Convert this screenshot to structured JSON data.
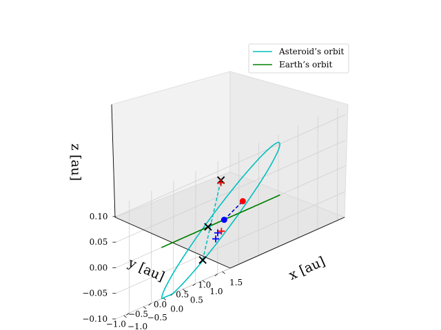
{
  "chart_data": {
    "type": "line",
    "projection": "3d",
    "title": "",
    "xlabel": "x [au]",
    "ylabel": "y [au]",
    "zlabel": "z [au]",
    "xlim": [
      -1.2,
      1.7
    ],
    "ylim": [
      -1.3,
      1.3
    ],
    "zlim": [
      -0.1,
      0.12
    ],
    "x_ticks": [
      -1.0,
      -0.5,
      0.0,
      0.5,
      1.0,
      1.5
    ],
    "x_tick_labels": [
      "−1.0",
      "−0.5",
      "0.0",
      "0.5",
      "1.0",
      "1.5"
    ],
    "y_ticks": [
      1.0,
      0.5,
      0.0,
      -0.5,
      -1.0
    ],
    "y_tick_labels": [
      "1.0",
      "0.5",
      "0.0",
      "−0.5",
      "−1.0"
    ],
    "z_ticks": [
      0.1,
      0.05,
      0.0,
      -0.05,
      -0.1
    ],
    "z_tick_labels": [
      "0.10",
      "0.05",
      "0.00",
      "−0.05",
      "−0.10"
    ],
    "grid": true,
    "legend_position": "top-right",
    "series": [
      {
        "name": "Asteroid’s orbit",
        "color": "#00bfbf",
        "orbit": {
          "a": 1.0,
          "e": 0.0,
          "inclination_deg": 6,
          "node_deg": 300
        }
      },
      {
        "name": "Earth’s orbit",
        "color": "#008000",
        "orbit": {
          "a": 1.0,
          "e": 0.0,
          "inclination_deg": 0,
          "node_deg": 0
        }
      }
    ],
    "markers": [
      {
        "kind": "dot",
        "color": "#0000ff",
        "x": -0.7,
        "y": 0.7,
        "z": 0.0
      },
      {
        "kind": "dot",
        "color": "#ff0000",
        "x": 0.95,
        "y": -0.35,
        "z": 0.02
      },
      {
        "kind": "cross",
        "color": "#000000",
        "x": 0.35,
        "y": -0.6,
        "z": 0.0
      },
      {
        "kind": "cross",
        "color": "#000000",
        "x": 0.9,
        "y": -0.8,
        "z": 0.08
      },
      {
        "kind": "cross",
        "color": "#000000",
        "x": -0.85,
        "y": 0.35,
        "z": -0.06
      },
      {
        "kind": "plus",
        "color": "#0000ff",
        "x": -0.75,
        "y": 0.6,
        "z": -0.02
      },
      {
        "kind": "plus",
        "color": "#0000ff",
        "x": -0.8,
        "y": 0.6,
        "z": -0.03
      },
      {
        "kind": "plus",
        "color": "#ff0000",
        "x": -0.6,
        "y": 0.55,
        "z": -0.02
      },
      {
        "kind": "plus",
        "color": "#ff0000",
        "x": 0.9,
        "y": -0.8,
        "z": 0.075
      }
    ],
    "lines": [
      {
        "style": "dashed",
        "color": "#0000cc",
        "from": {
          "x": -0.7,
          "y": 0.7,
          "z": 0.0
        },
        "to": {
          "x": 0.95,
          "y": -0.35,
          "z": 0.02
        }
      },
      {
        "style": "dashed",
        "color": "#00bfbf",
        "from": {
          "x": -0.85,
          "y": 0.35,
          "z": -0.06
        },
        "to": {
          "x": 0.9,
          "y": -0.8,
          "z": 0.08
        }
      }
    ]
  }
}
